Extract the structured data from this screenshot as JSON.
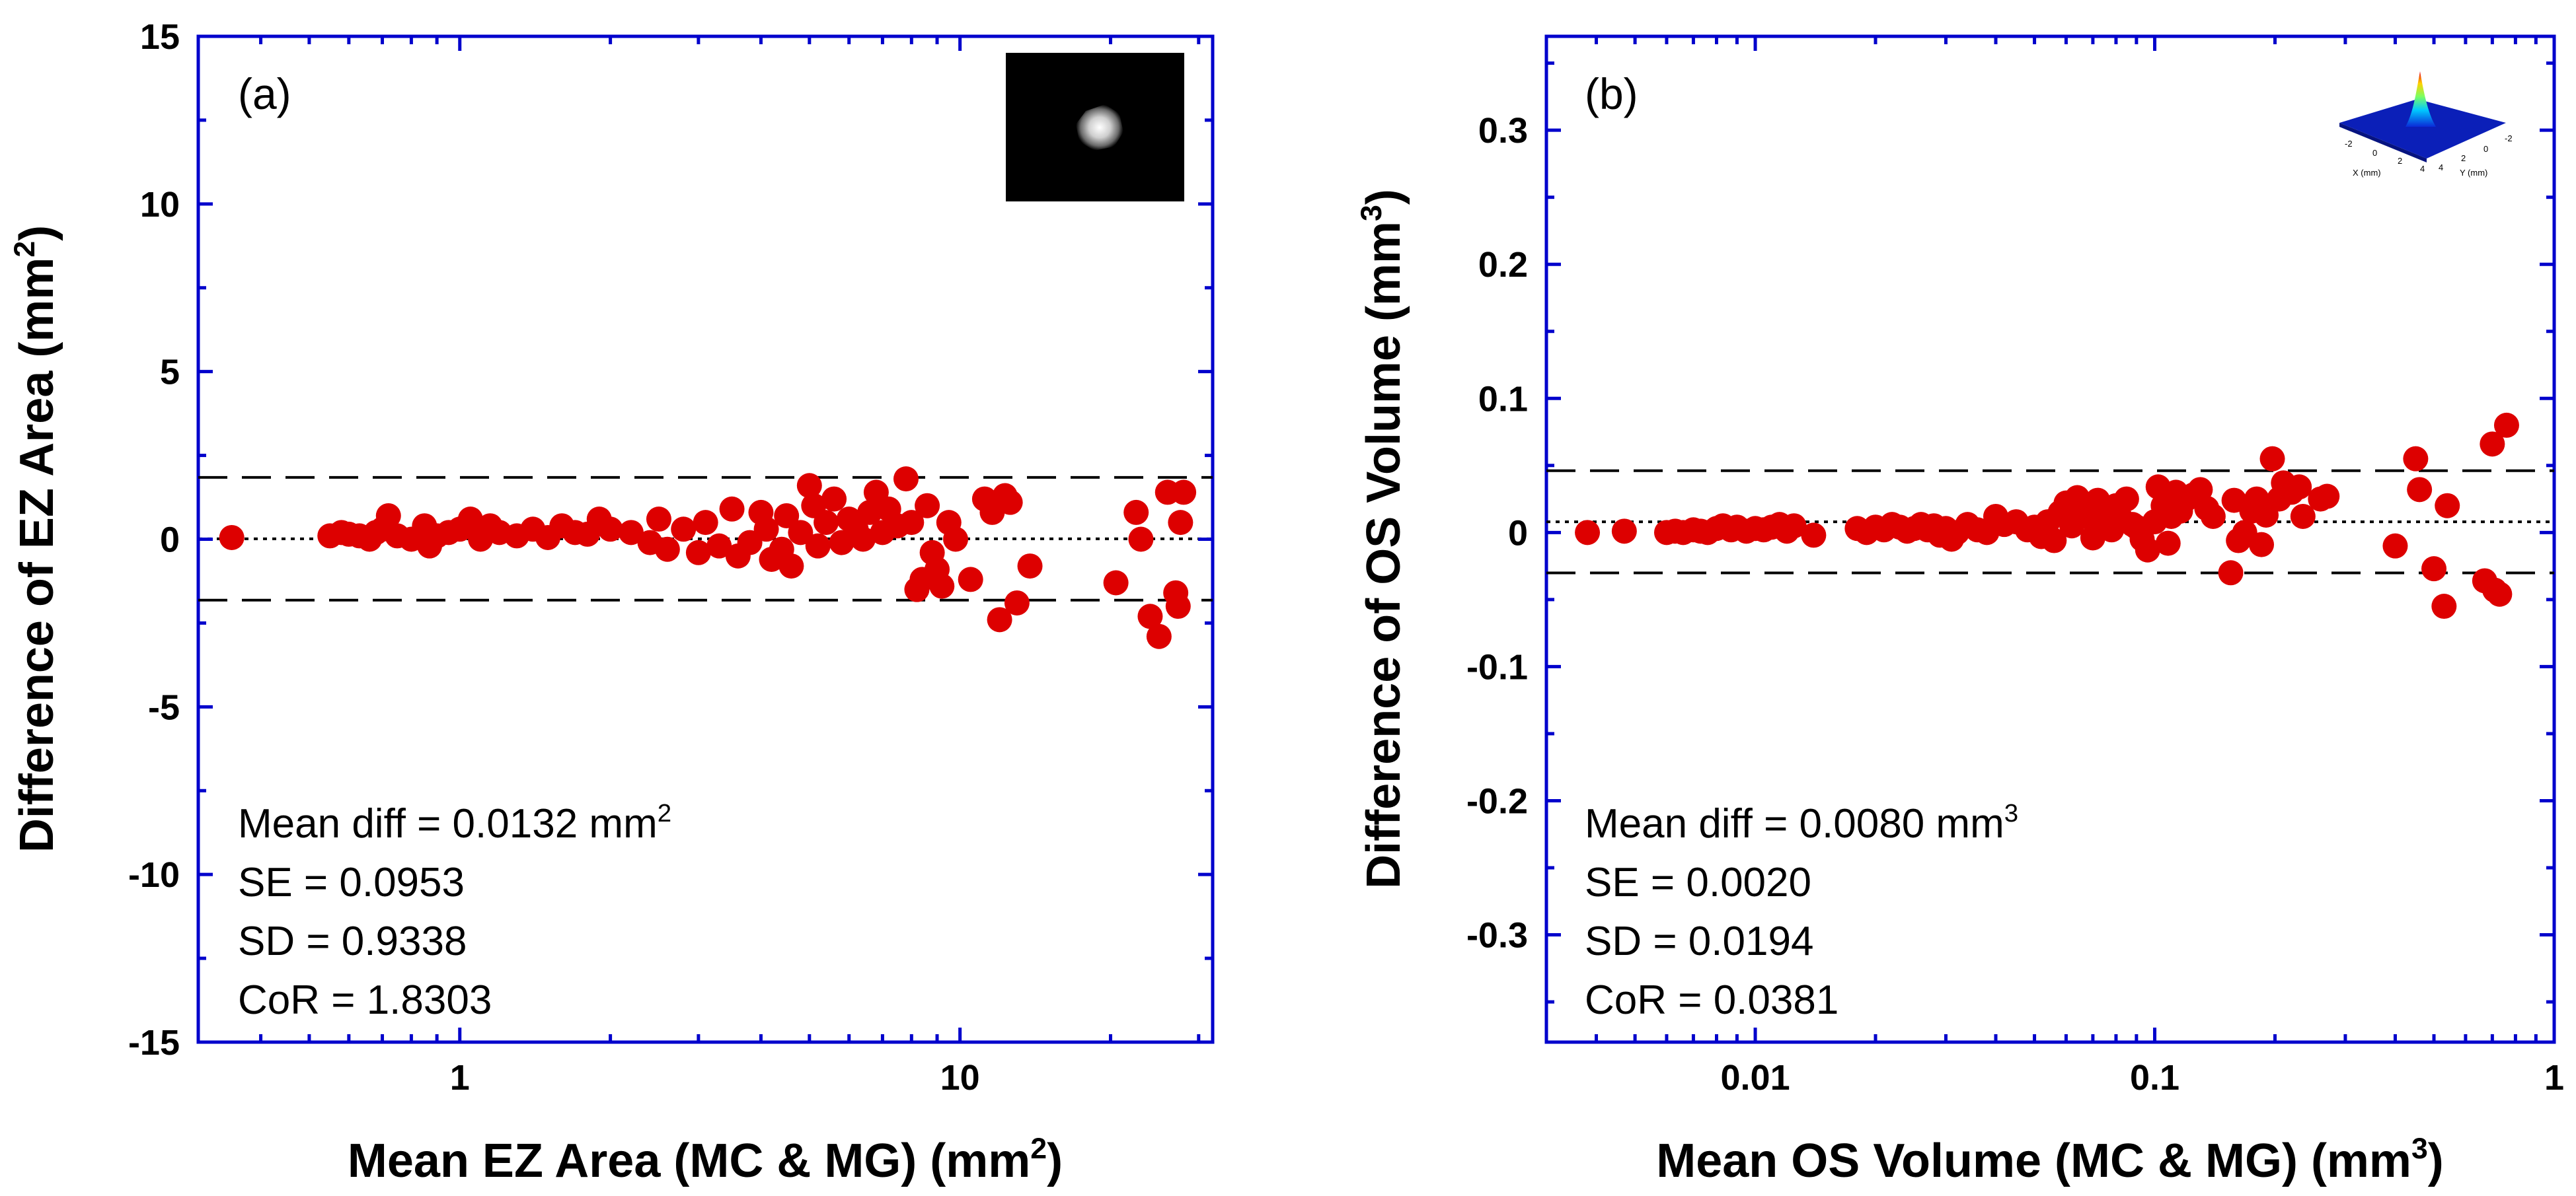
{
  "colors": {
    "axis": "#0000cc",
    "point": "#dd0000",
    "background": "#ffffff"
  },
  "chart_data": [
    {
      "type": "scatter",
      "panel_label": "(a)",
      "xscale": "log",
      "xlim": [
        0.3,
        32
      ],
      "ylim": [
        -15,
        15
      ],
      "x_ticks": [
        1,
        10
      ],
      "x_tick_labels": [
        "1",
        "10"
      ],
      "y_ticks": [
        15,
        10,
        5,
        0,
        -5,
        -10,
        -15
      ],
      "y_tick_labels": [
        "15",
        "10",
        "5",
        "0",
        "-5",
        "-10",
        "-15"
      ],
      "xlabel": {
        "text": "Mean EZ Area (MC & MG) (mm",
        "sup": "2",
        "end": ")"
      },
      "ylabel": {
        "text": "Difference of EZ Area (mm",
        "sup": "2",
        "end": ")"
      },
      "mean_diff_line": 0.0132,
      "limits_of_agreement": [
        1.8435,
        -1.8171
      ],
      "stats": {
        "mean_diff": {
          "text": "Mean diff = 0.0132 mm",
          "sup": "2"
        },
        "se": "SE = 0.0953",
        "sd": "SD = 0.9338",
        "cor": "CoR = 1.8303"
      },
      "inset": "grayscale-spot-image",
      "points": [
        [
          0.35,
          0.05
        ],
        [
          0.55,
          0.1
        ],
        [
          0.58,
          0.2
        ],
        [
          0.6,
          0.15
        ],
        [
          0.63,
          0.1
        ],
        [
          0.66,
          0.0
        ],
        [
          0.68,
          0.2
        ],
        [
          0.7,
          0.3
        ],
        [
          0.72,
          0.7
        ],
        [
          0.75,
          0.1
        ],
        [
          0.8,
          0.0
        ],
        [
          0.85,
          0.4
        ],
        [
          0.87,
          -0.2
        ],
        [
          0.9,
          0.1
        ],
        [
          0.95,
          0.2
        ],
        [
          1.0,
          0.3
        ],
        [
          1.05,
          0.6
        ],
        [
          1.1,
          0.0
        ],
        [
          1.15,
          0.4
        ],
        [
          1.2,
          0.2
        ],
        [
          1.3,
          0.1
        ],
        [
          1.4,
          0.3
        ],
        [
          1.5,
          0.05
        ],
        [
          1.6,
          0.4
        ],
        [
          1.7,
          0.2
        ],
        [
          1.8,
          0.15
        ],
        [
          1.9,
          0.6
        ],
        [
          2.0,
          0.3
        ],
        [
          2.2,
          0.2
        ],
        [
          2.4,
          -0.1
        ],
        [
          2.5,
          0.6
        ],
        [
          2.6,
          -0.3
        ],
        [
          2.8,
          0.3
        ],
        [
          3.0,
          -0.4
        ],
        [
          3.1,
          0.5
        ],
        [
          3.3,
          -0.2
        ],
        [
          3.5,
          0.9
        ],
        [
          3.6,
          -0.5
        ],
        [
          3.8,
          -0.1
        ],
        [
          4.0,
          0.8
        ],
        [
          4.1,
          0.3
        ],
        [
          4.2,
          -0.6
        ],
        [
          4.4,
          -0.3
        ],
        [
          4.5,
          0.7
        ],
        [
          4.6,
          -0.8
        ],
        [
          4.8,
          0.2
        ],
        [
          5.0,
          1.6
        ],
        [
          5.1,
          1.0
        ],
        [
          5.2,
          -0.2
        ],
        [
          5.4,
          0.5
        ],
        [
          5.6,
          1.2
        ],
        [
          5.8,
          -0.1
        ],
        [
          6.0,
          0.6
        ],
        [
          6.2,
          0.3
        ],
        [
          6.4,
          0.0
        ],
        [
          6.6,
          0.8
        ],
        [
          6.8,
          1.4
        ],
        [
          7.0,
          0.2
        ],
        [
          7.2,
          0.9
        ],
        [
          7.5,
          0.4
        ],
        [
          7.8,
          1.8
        ],
        [
          8.0,
          0.5
        ],
        [
          8.2,
          -1.5
        ],
        [
          8.4,
          -1.2
        ],
        [
          8.6,
          1.0
        ],
        [
          8.8,
          -0.4
        ],
        [
          9.0,
          -0.9
        ],
        [
          9.2,
          -1.4
        ],
        [
          9.5,
          0.5
        ],
        [
          9.8,
          0.0
        ],
        [
          10.5,
          -1.2
        ],
        [
          11.2,
          1.2
        ],
        [
          11.6,
          0.8
        ],
        [
          12.0,
          -2.4
        ],
        [
          12.3,
          1.3
        ],
        [
          12.6,
          1.1
        ],
        [
          13.0,
          -1.9
        ],
        [
          13.8,
          -0.8
        ],
        [
          20.5,
          -1.3
        ],
        [
          22.5,
          0.8
        ],
        [
          23.0,
          0.0
        ],
        [
          24.0,
          -2.3
        ],
        [
          25.0,
          -2.9
        ],
        [
          26.0,
          1.4
        ],
        [
          27.0,
          -1.6
        ],
        [
          27.3,
          -2.0
        ],
        [
          27.6,
          0.5
        ],
        [
          28.0,
          1.4
        ]
      ]
    },
    {
      "type": "scatter",
      "panel_label": "(b)",
      "xscale": "log",
      "xlim": [
        0.003,
        1
      ],
      "ylim": [
        -0.38,
        0.37
      ],
      "x_ticks": [
        0.01,
        0.1,
        1
      ],
      "x_tick_labels": [
        "0.01",
        "0.1",
        "1"
      ],
      "y_ticks": [
        0.3,
        0.2,
        0.1,
        0,
        -0.1,
        -0.2,
        -0.3
      ],
      "y_tick_labels": [
        "0.3",
        "0.2",
        "0.1",
        "0",
        "-0.1",
        "-0.2",
        "-0.3"
      ],
      "xlabel": {
        "text": "Mean OS Volume (MC & MG) (mm",
        "sup": "3",
        "end": ")"
      },
      "ylabel": {
        "text": "Difference of OS Volume (mm",
        "sup": "3",
        "end": ")"
      },
      "mean_diff_line": 0.008,
      "limits_of_agreement": [
        0.0461,
        -0.0301
      ],
      "stats": {
        "mean_diff": {
          "text": "Mean diff = 0.0080 mm",
          "sup": "3"
        },
        "se": "SE = 0.0020",
        "sd": "SD = 0.0194",
        "cor": "CoR = 0.0381"
      },
      "inset": {
        "type": "3d-surface-plot",
        "x_axis_label": "X (mm)",
        "y_axis_label": "Y (mm)",
        "x_tick_labels": [
          "-2",
          "0",
          "2",
          "4"
        ],
        "y_tick_labels": [
          "4",
          "2",
          "0",
          "-2"
        ]
      },
      "points": [
        [
          0.0038,
          0.0
        ],
        [
          0.0047,
          0.001
        ],
        [
          0.006,
          0.0
        ],
        [
          0.0063,
          0.001
        ],
        [
          0.0066,
          0.0
        ],
        [
          0.007,
          0.002
        ],
        [
          0.0073,
          0.001
        ],
        [
          0.0076,
          0.0
        ],
        [
          0.008,
          0.003
        ],
        [
          0.0083,
          0.005
        ],
        [
          0.0087,
          0.002
        ],
        [
          0.009,
          0.004
        ],
        [
          0.0095,
          0.001
        ],
        [
          0.01,
          0.003
        ],
        [
          0.0105,
          0.002
        ],
        [
          0.011,
          0.004
        ],
        [
          0.0115,
          0.006
        ],
        [
          0.012,
          0.001
        ],
        [
          0.0125,
          0.005
        ],
        [
          0.014,
          -0.002
        ],
        [
          0.018,
          0.003
        ],
        [
          0.019,
          0.0
        ],
        [
          0.02,
          0.004
        ],
        [
          0.021,
          0.002
        ],
        [
          0.022,
          0.006
        ],
        [
          0.023,
          0.004
        ],
        [
          0.024,
          0.001
        ],
        [
          0.025,
          0.003
        ],
        [
          0.026,
          0.006
        ],
        [
          0.027,
          0.002
        ],
        [
          0.028,
          0.005
        ],
        [
          0.029,
          -0.002
        ],
        [
          0.03,
          0.003
        ],
        [
          0.031,
          -0.005
        ],
        [
          0.032,
          0.0
        ],
        [
          0.034,
          0.006
        ],
        [
          0.036,
          0.002
        ],
        [
          0.038,
          0.0
        ],
        [
          0.04,
          0.012
        ],
        [
          0.042,
          0.006
        ],
        [
          0.045,
          0.008
        ],
        [
          0.048,
          0.002
        ],
        [
          0.05,
          0.004
        ],
        [
          0.052,
          -0.003
        ],
        [
          0.054,
          0.008
        ],
        [
          0.056,
          -0.006
        ],
        [
          0.058,
          0.015
        ],
        [
          0.06,
          0.022
        ],
        [
          0.062,
          0.005
        ],
        [
          0.064,
          0.026
        ],
        [
          0.066,
          0.012
        ],
        [
          0.068,
          0.018
        ],
        [
          0.07,
          -0.004
        ],
        [
          0.072,
          0.024
        ],
        [
          0.074,
          0.008
        ],
        [
          0.076,
          0.015
        ],
        [
          0.078,
          0.002
        ],
        [
          0.08,
          0.02
        ],
        [
          0.082,
          0.011
        ],
        [
          0.085,
          0.025
        ],
        [
          0.088,
          0.006
        ],
        [
          0.09,
          0.004
        ],
        [
          0.093,
          -0.005
        ],
        [
          0.096,
          -0.013
        ],
        [
          0.1,
          0.008
        ],
        [
          0.102,
          0.034
        ],
        [
          0.105,
          0.02
        ],
        [
          0.108,
          -0.008
        ],
        [
          0.11,
          0.012
        ],
        [
          0.113,
          0.03
        ],
        [
          0.116,
          0.016
        ],
        [
          0.12,
          0.025
        ],
        [
          0.125,
          0.028
        ],
        [
          0.13,
          0.032
        ],
        [
          0.135,
          0.018
        ],
        [
          0.14,
          0.012
        ],
        [
          0.155,
          -0.03
        ],
        [
          0.158,
          0.024
        ],
        [
          0.162,
          -0.006
        ],
        [
          0.168,
          0.0
        ],
        [
          0.175,
          0.016
        ],
        [
          0.18,
          0.025
        ],
        [
          0.185,
          -0.009
        ],
        [
          0.19,
          0.013
        ],
        [
          0.197,
          0.055
        ],
        [
          0.205,
          0.025
        ],
        [
          0.21,
          0.037
        ],
        [
          0.22,
          0.03
        ],
        [
          0.23,
          0.034
        ],
        [
          0.235,
          0.012
        ],
        [
          0.26,
          0.025
        ],
        [
          0.27,
          0.027
        ],
        [
          0.4,
          -0.01
        ],
        [
          0.45,
          0.055
        ],
        [
          0.46,
          0.032
        ],
        [
          0.5,
          -0.027
        ],
        [
          0.53,
          -0.055
        ],
        [
          0.54,
          0.02
        ],
        [
          0.67,
          -0.036
        ],
        [
          0.7,
          0.066
        ],
        [
          0.71,
          -0.043
        ],
        [
          0.73,
          -0.046
        ],
        [
          0.76,
          0.08
        ]
      ]
    }
  ]
}
